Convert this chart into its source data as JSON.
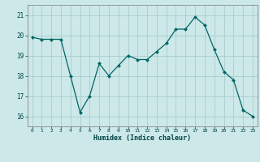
{
  "x": [
    0,
    1,
    2,
    3,
    4,
    5,
    6,
    7,
    8,
    9,
    10,
    11,
    12,
    13,
    14,
    15,
    16,
    17,
    18,
    19,
    20,
    21,
    22,
    23
  ],
  "y": [
    19.9,
    19.8,
    19.8,
    19.8,
    18.0,
    16.2,
    17.0,
    18.6,
    18.0,
    18.5,
    19.0,
    18.8,
    18.8,
    19.2,
    19.6,
    20.3,
    20.3,
    20.9,
    20.5,
    19.3,
    18.2,
    17.8,
    16.3,
    16.0
  ],
  "xlabel": "Humidex (Indice chaleur)",
  "ylim": [
    15.5,
    21.5
  ],
  "xlim": [
    -0.5,
    23.5
  ],
  "yticks": [
    16,
    17,
    18,
    19,
    20,
    21
  ],
  "xticks": [
    0,
    1,
    2,
    3,
    4,
    5,
    6,
    7,
    8,
    9,
    10,
    11,
    12,
    13,
    14,
    15,
    16,
    17,
    18,
    19,
    20,
    21,
    22,
    23
  ],
  "line_color": "#006666",
  "marker_color": "#006666",
  "bg_color": "#cce8e8",
  "grid_color": "#aacccc",
  "tick_color": "#004444",
  "spine_color": "#888888"
}
